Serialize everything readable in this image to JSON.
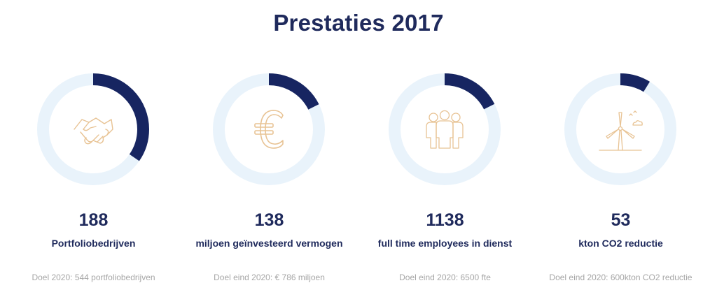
{
  "title": "Prestaties 2017",
  "colors": {
    "progress": "#172561",
    "track": "#e9f3fb",
    "icon": "#e8c394",
    "text": "#1f2a5c",
    "muted": "#a6a6a6"
  },
  "stats": [
    {
      "value": "188",
      "label": "Portfoliobedrijven",
      "goal": "Doel 2020: 544 portfoliobedrijven",
      "progress": 0.346,
      "icon": "handshake-icon"
    },
    {
      "value": "138",
      "label": "miljoen geïnvesteerd vermogen",
      "goal": "Doel eind 2020: € 786 miljoen",
      "progress": 0.176,
      "icon": "euro-icon"
    },
    {
      "value": "1138",
      "label": "full time employees in dienst",
      "goal": "Doel eind 2020: 6500 fte",
      "progress": 0.175,
      "icon": "people-icon"
    },
    {
      "value": "53",
      "label": "kton CO2 reductie",
      "goal": "Doel eind 2020: 600kton CO2 reductie",
      "progress": 0.088,
      "icon": "wind-turbine-icon"
    }
  ]
}
